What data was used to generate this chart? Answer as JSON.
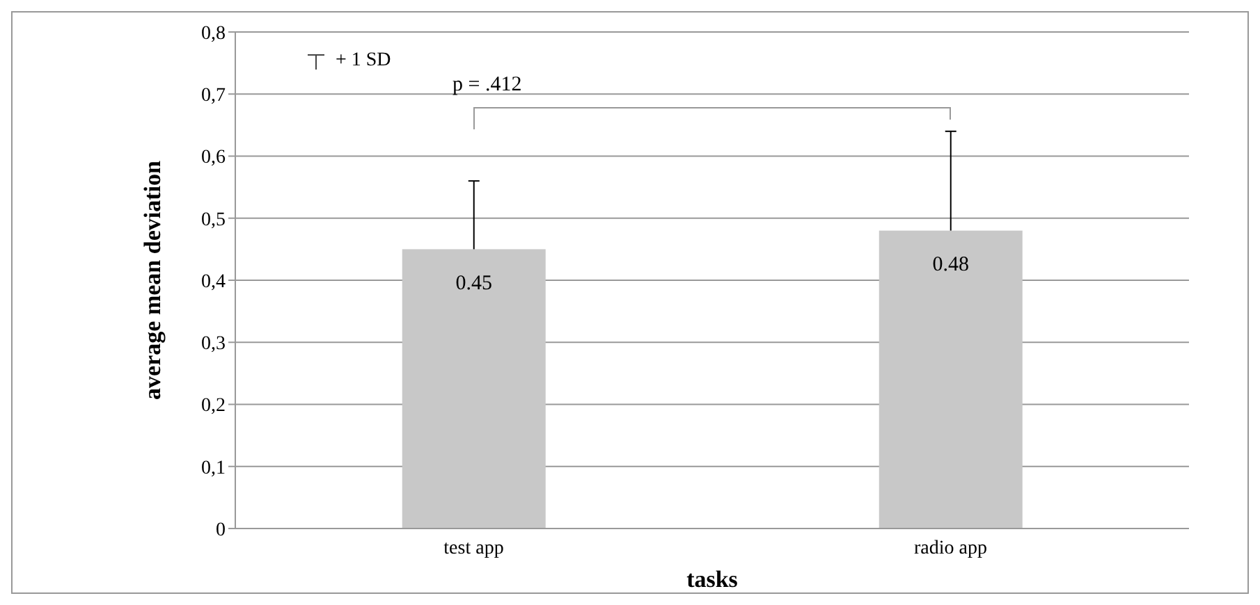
{
  "chart_data": {
    "type": "bar",
    "xlabel": "tasks",
    "ylabel": "average mean deviation",
    "categories": [
      "test app",
      "radio app"
    ],
    "values": [
      0.45,
      0.48
    ],
    "color": "#c8c8c8",
    "errors": [
      [
        0.45,
        0.56
      ],
      [
        0.48,
        0.64
      ]
    ],
    "data_labels": true,
    "ylim": [
      0,
      0.8
    ],
    "yticks": [
      0,
      {
        "value": 0.1,
        "label": "0,1"
      },
      {
        "value": 0.2,
        "label": "0,2"
      },
      {
        "value": 0.3,
        "label": "0,3"
      },
      {
        "value": 0.4,
        "label": "0,4"
      },
      {
        "value": 0.5,
        "label": "0,5"
      },
      {
        "value": 0.6,
        "label": "0,6"
      },
      {
        "value": 0.7,
        "label": "0,7"
      },
      {
        "value": 0.8,
        "label": "0,8"
      }
    ],
    "grid": "y",
    "annotations": [
      "+ 1 SD",
      "p = .412"
    ]
  }
}
